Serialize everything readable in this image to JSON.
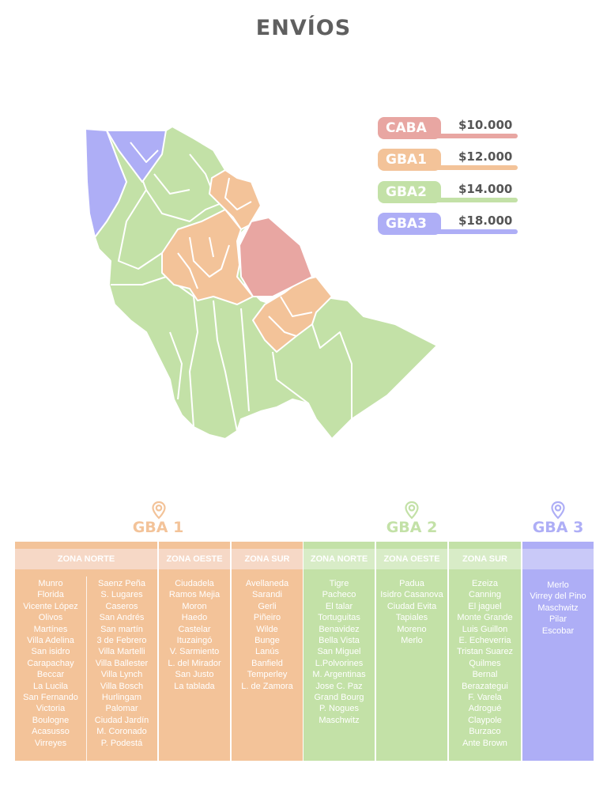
{
  "title": "ENVÍOS",
  "colors": {
    "caba": "#e8a6a2",
    "gba1": "#f3c399",
    "gba2": "#c3e1a7",
    "gba3": "#aeaef6",
    "gba1_head": "#f6d8c6",
    "gba2_head": "#d8ecc7",
    "gba3_head": "#c9c9f8"
  },
  "legend": [
    {
      "zone": "CABA",
      "price": "$10.000",
      "color": "#e8a6a2"
    },
    {
      "zone": "GBA1",
      "price": "$12.000",
      "color": "#f3c399"
    },
    {
      "zone": "GBA2",
      "price": "$14.000",
      "color": "#c3e1a7"
    },
    {
      "zone": "GBA3",
      "price": "$18.000",
      "color": "#aeaef6"
    }
  ],
  "map": {
    "icon": "buenos-aires-districts-map"
  },
  "groups": {
    "gba1": {
      "title": "GBA 1",
      "icon": "location-pin-icon",
      "zona_norte": {
        "label": "ZONA NORTE",
        "col1": [
          "Munro",
          "Florida",
          "Vicente López",
          "Olivos",
          "Martínes",
          "Villa Adelina",
          "San isidro",
          "Carapachay",
          "Beccar",
          "La Lucila",
          "San Fernando",
          "Victoria",
          "Boulogne",
          "Acasusso",
          "Virreyes"
        ],
        "col2": [
          "Saenz Peña",
          "S. Lugares",
          "Caseros",
          "San Andrés",
          "San martín",
          "3 de Febrero",
          "Villa Martelli",
          "Villa Ballester",
          "Villa Lynch",
          "Villa Bosch",
          "Hurlingam",
          "Palomar",
          "Ciudad Jardín",
          "M. Coronado",
          "P. Podestá"
        ]
      },
      "zona_oeste": {
        "label": "ZONA OESTE",
        "items": [
          "Ciudadela",
          "Ramos Mejia",
          "Moron",
          "Haedo",
          "Castelar",
          "Ituzaingó",
          "V. Sarmiento",
          "L. del Mirador",
          "San Justo",
          "La tablada"
        ]
      },
      "zona_sur": {
        "label": "ZONA SUR",
        "items": [
          "Avellaneda",
          "Sarandi",
          "Gerli",
          "Piñeiro",
          "Wilde",
          "Bunge",
          "Lanús",
          "Banfield",
          "Temperley",
          "L. de Zamora"
        ]
      }
    },
    "gba2": {
      "title": "GBA 2",
      "icon": "location-pin-icon",
      "zona_norte": {
        "label": "ZONA NORTE",
        "items": [
          "Tigre",
          "Pacheco",
          "El talar",
          "Tortuguitas",
          "Benavidez",
          "Bella Vista",
          "San Miguel",
          "L.Polvorines",
          "M. Argentinas",
          "Jose C. Paz",
          "Grand Bourg",
          "P. Nogues",
          "Maschwitz"
        ]
      },
      "zona_oeste": {
        "label": "ZONA OESTE",
        "items": [
          "Padua",
          "Isidro Casanova",
          "Ciudad Evita",
          "Tapiales",
          "Moreno",
          "Merlo"
        ]
      },
      "zona_sur": {
        "label": "ZONA SUR",
        "items": [
          "Ezeiza",
          "Canning",
          "El jaguel",
          "Monte Grande",
          "Luis Guillon",
          "E. Echeverria",
          "Tristan Suarez",
          "Quilmes",
          "Bernal",
          "Berazategui",
          "F. Varela",
          "Adrogué",
          "Claypole",
          "Burzaco",
          "Ante Brown"
        ]
      }
    },
    "gba3": {
      "title": "GBA 3",
      "icon": "location-pin-icon",
      "items": [
        "Merlo",
        "Virrey del Pino",
        "Maschwitz",
        "Pilar",
        "Escobar"
      ]
    }
  }
}
